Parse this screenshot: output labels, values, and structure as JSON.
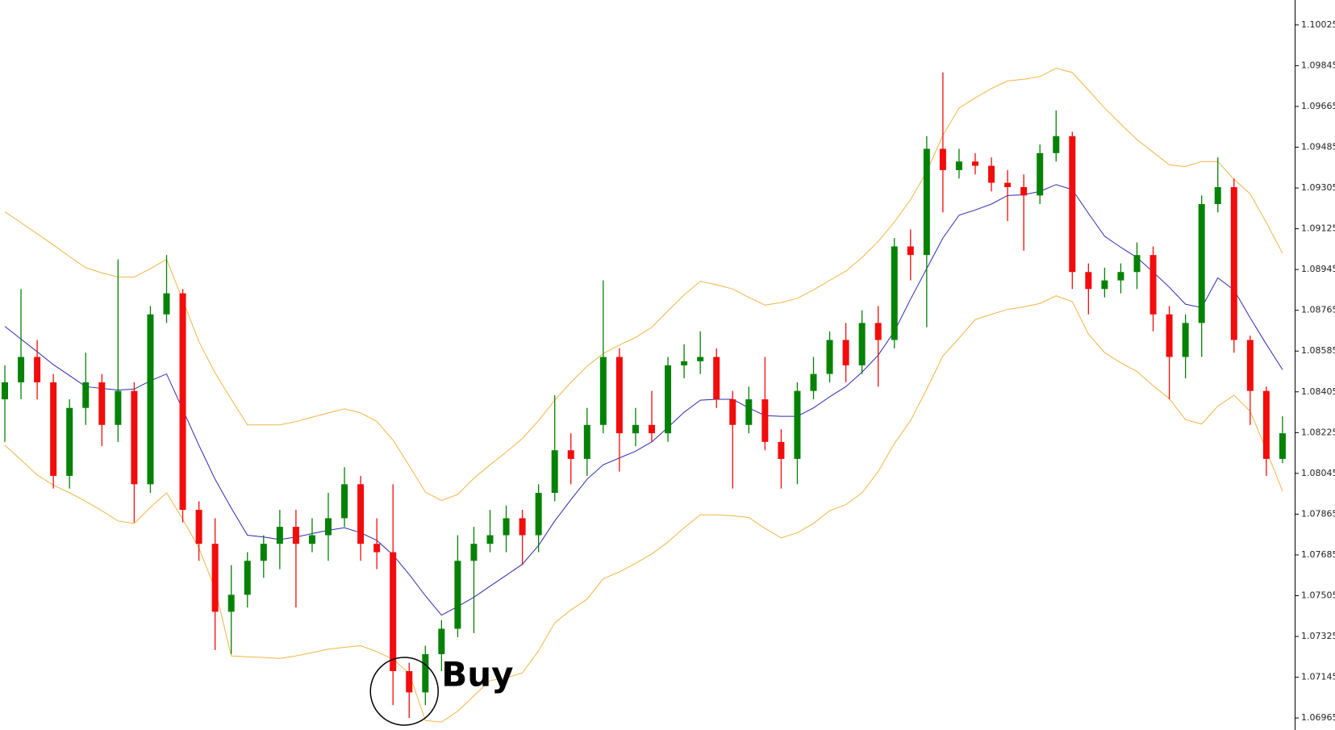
{
  "chart_data": {
    "type": "candlestick",
    "annotation": "Buy",
    "ylim": [
      1.06912,
      1.10135
    ],
    "yticks": [
      1.10025,
      1.09845,
      1.09665,
      1.09485,
      1.09305,
      1.09125,
      1.08945,
      1.08765,
      1.08585,
      1.08405,
      1.08225,
      1.08045,
      1.07865,
      1.07685,
      1.07505,
      1.07325,
      1.07145,
      1.06965
    ],
    "up_color": "#058205",
    "down_color": "#f20c0c",
    "open": [
      1.08372,
      1.08447,
      1.08559,
      1.08447,
      1.08034,
      1.08334,
      1.08447,
      1.08259,
      1.08409,
      1.07997,
      1.08747,
      1.0884,
      1.07884,
      1.07734,
      1.07434,
      1.07509,
      1.07659,
      1.07734,
      1.07809,
      1.07734,
      1.07772,
      1.07847,
      1.07997,
      1.07734,
      1.07697,
      1.07172,
      1.07078,
      1.07247,
      1.07359,
      1.07659,
      1.07734,
      1.07772,
      1.07847,
      1.07772,
      1.07959,
      1.08147,
      1.08109,
      1.08259,
      1.08559,
      1.08222,
      1.08259,
      1.08222,
      1.08522,
      1.0854,
      1.08559,
      1.08372,
      1.08259,
      1.08372,
      1.08184,
      1.08109,
      1.08409,
      1.08484,
      1.08634,
      1.08522,
      1.08709,
      1.08634,
      1.09047,
      1.09009,
      1.09478,
      1.09384,
      1.09422,
      1.09403,
      1.09328,
      1.09309,
      1.09272,
      1.09459,
      1.09534,
      1.08934,
      1.08859,
      1.08897,
      1.08934,
      1.09009,
      1.08747,
      1.08559,
      1.08709,
      1.09234,
      1.09309,
      1.08634,
      1.08409,
      1.08109
    ],
    "high": [
      1.08522,
      1.08859,
      1.08634,
      1.08484,
      1.08372,
      1.08578,
      1.08484,
      1.0899,
      1.08447,
      1.08784,
      1.09009,
      1.08859,
      1.07922,
      1.07847,
      1.0764,
      1.07697,
      1.07772,
      1.07884,
      1.07884,
      1.07847,
      1.07959,
      1.08072,
      1.08034,
      1.07847,
      1.07997,
      1.07209,
      1.07284,
      1.07397,
      1.07772,
      1.07809,
      1.07884,
      1.07903,
      1.07884,
      1.07997,
      1.0839,
      1.08222,
      1.08334,
      1.08897,
      1.08597,
      1.08334,
      1.08409,
      1.08559,
      1.08615,
      1.08672,
      1.08597,
      1.08409,
      1.08428,
      1.08559,
      1.0824,
      1.08447,
      1.08559,
      1.08672,
      1.08709,
      1.08765,
      1.08784,
      1.09084,
      1.09122,
      1.09534,
      1.09815,
      1.09478,
      1.09459,
      1.0944,
      1.09384,
      1.09365,
      1.09497,
      1.09647,
      1.09553,
      1.08972,
      1.08953,
      1.08972,
      1.09065,
      1.09047,
      1.08784,
      1.08747,
      1.09272,
      1.0944,
      1.09347,
      1.08653,
      1.08428,
      1.08297
    ],
    "low": [
      1.08184,
      1.08372,
      1.08372,
      1.07978,
      1.07978,
      1.08259,
      1.08165,
      1.08184,
      1.07828,
      1.07959,
      1.08709,
      1.07828,
      1.07659,
      1.07265,
      1.07247,
      1.07453,
      1.07584,
      1.07622,
      1.07453,
      1.07697,
      1.07659,
      1.07809,
      1.07659,
      1.07622,
      1.07022,
      1.06965,
      1.07022,
      1.07172,
      1.07322,
      1.0734,
      1.07697,
      1.07697,
      1.0764,
      1.07697,
      1.07922,
      1.07997,
      1.08034,
      1.08222,
      1.08053,
      1.08165,
      1.08184,
      1.08184,
      1.08465,
      1.08484,
      1.08334,
      1.07978,
      1.08222,
      1.08147,
      1.07978,
      1.07997,
      1.08372,
      1.08447,
      1.08447,
      1.08484,
      1.08428,
      1.08597,
      1.08897,
      1.0869,
      1.09197,
      1.09347,
      1.09365,
      1.0929,
      1.09159,
      1.09028,
      1.09234,
      1.09422,
      1.08859,
      1.08747,
      1.08822,
      1.0884,
      1.08859,
      1.08672,
      1.08372,
      1.08465,
      1.08559,
      1.09197,
      1.08578,
      1.08259,
      1.08034,
      1.0809
    ],
    "close": [
      1.08447,
      1.08559,
      1.08447,
      1.08034,
      1.08334,
      1.08447,
      1.08259,
      1.08409,
      1.07997,
      1.08747,
      1.0884,
      1.07884,
      1.07734,
      1.07434,
      1.07509,
      1.07659,
      1.07734,
      1.07809,
      1.07734,
      1.07772,
      1.07847,
      1.07997,
      1.07734,
      1.07697,
      1.07172,
      1.07078,
      1.07247,
      1.07359,
      1.07659,
      1.07734,
      1.07772,
      1.07847,
      1.07772,
      1.07959,
      1.08147,
      1.08109,
      1.08259,
      1.08559,
      1.08222,
      1.08259,
      1.08222,
      1.08522,
      1.0854,
      1.08559,
      1.08372,
      1.08259,
      1.08372,
      1.08184,
      1.08109,
      1.08409,
      1.08484,
      1.08634,
      1.08522,
      1.08709,
      1.08634,
      1.09047,
      1.09009,
      1.09478,
      1.09384,
      1.09422,
      1.09403,
      1.09328,
      1.09309,
      1.09272,
      1.09459,
      1.09534,
      1.08934,
      1.08859,
      1.08897,
      1.08934,
      1.09009,
      1.08747,
      1.08559,
      1.08709,
      1.09234,
      1.09309,
      1.08634,
      1.08409,
      1.08109,
      1.08222
    ],
    "lines": [
      {
        "color": "#f2b445",
        "values": [
          1.092,
          1.09152,
          1.09103,
          1.09054,
          1.09002,
          1.08953,
          1.0893,
          1.08912,
          1.08912,
          1.08949,
          1.0899,
          1.0881,
          1.08627,
          1.08488,
          1.08372,
          1.08259,
          1.08259,
          1.08259,
          1.08274,
          1.08293,
          1.08312,
          1.0833,
          1.08312,
          1.08274,
          1.08192,
          1.08079,
          1.07963,
          1.07925,
          1.07952,
          1.08023,
          1.08083,
          1.08139,
          1.08199,
          1.08278,
          1.08368,
          1.08447,
          1.08518,
          1.08574,
          1.08612,
          1.08645,
          1.0869,
          1.08762,
          1.08833,
          1.08893,
          1.08878,
          1.08859,
          1.08822,
          1.08788,
          1.08799,
          1.08818,
          1.08855,
          1.08897,
          1.08938,
          1.08998,
          1.09069,
          1.09155,
          1.09253,
          1.09377,
          1.09538,
          1.09658,
          1.09703,
          1.09744,
          1.09778,
          1.09785,
          1.09797,
          1.09834,
          1.09815,
          1.09737,
          1.09658,
          1.09587,
          1.09519,
          1.09463,
          1.09407,
          1.09399,
          1.09422,
          1.09422,
          1.09343,
          1.09279,
          1.09152,
          1.09017
        ]
      },
      {
        "color": "#2b2bb0",
        "values": [
          1.08694,
          1.08638,
          1.08582,
          1.08525,
          1.08477,
          1.08428,
          1.0842,
          1.08413,
          1.08417,
          1.08454,
          1.08484,
          1.08327,
          1.08169,
          1.08019,
          1.07892,
          1.07772,
          1.07764,
          1.07753,
          1.07764,
          1.07779,
          1.07794,
          1.07805,
          1.07783,
          1.07749,
          1.07685,
          1.07599,
          1.07505,
          1.07419,
          1.07457,
          1.07498,
          1.07547,
          1.07595,
          1.07644,
          1.07727,
          1.07835,
          1.07929,
          1.08019,
          1.08083,
          1.08113,
          1.08143,
          1.08184,
          1.08248,
          1.08315,
          1.08368,
          1.08372,
          1.08372,
          1.08334,
          1.083,
          1.08297,
          1.08297,
          1.08334,
          1.08383,
          1.08428,
          1.08492,
          1.08567,
          1.08672,
          1.08814,
          1.08949,
          1.09084,
          1.09185,
          1.09208,
          1.09234,
          1.09272,
          1.09275,
          1.0929,
          1.0932,
          1.09298,
          1.09193,
          1.09092,
          1.09043,
          1.08998,
          1.08934,
          1.08867,
          1.08792,
          1.08777,
          1.08908,
          1.08855,
          1.08732,
          1.08615,
          1.08503
        ]
      },
      {
        "color": "#f2b445",
        "values": [
          1.08169,
          1.08105,
          1.08038,
          1.07993,
          1.07959,
          1.07922,
          1.0788,
          1.07835,
          1.07824,
          1.07895,
          1.07959,
          1.07843,
          1.07715,
          1.07535,
          1.07239,
          1.07235,
          1.07232,
          1.07228,
          1.07239,
          1.07254,
          1.07269,
          1.07277,
          1.07284,
          1.07258,
          1.07224,
          1.07164,
          1.06954,
          1.06947,
          1.06995,
          1.07063,
          1.0713,
          1.07142,
          1.07164,
          1.07262,
          1.07385,
          1.07442,
          1.0749,
          1.0758,
          1.0761,
          1.07648,
          1.07689,
          1.07742,
          1.07805,
          1.07862,
          1.07862,
          1.07858,
          1.0785,
          1.07802,
          1.0776,
          1.07783,
          1.07824,
          1.0788,
          1.07907,
          1.07959,
          1.08053,
          1.08177,
          1.08278,
          1.08417,
          1.08563,
          1.08642,
          1.08724,
          1.08747,
          1.08769,
          1.0878,
          1.08795,
          1.08829,
          1.08803,
          1.0866,
          1.08578,
          1.08533,
          1.08495,
          1.08432,
          1.08375,
          1.08282,
          1.08263,
          1.08342,
          1.0839,
          1.08319,
          1.08147,
          1.07967
        ]
      }
    ]
  }
}
